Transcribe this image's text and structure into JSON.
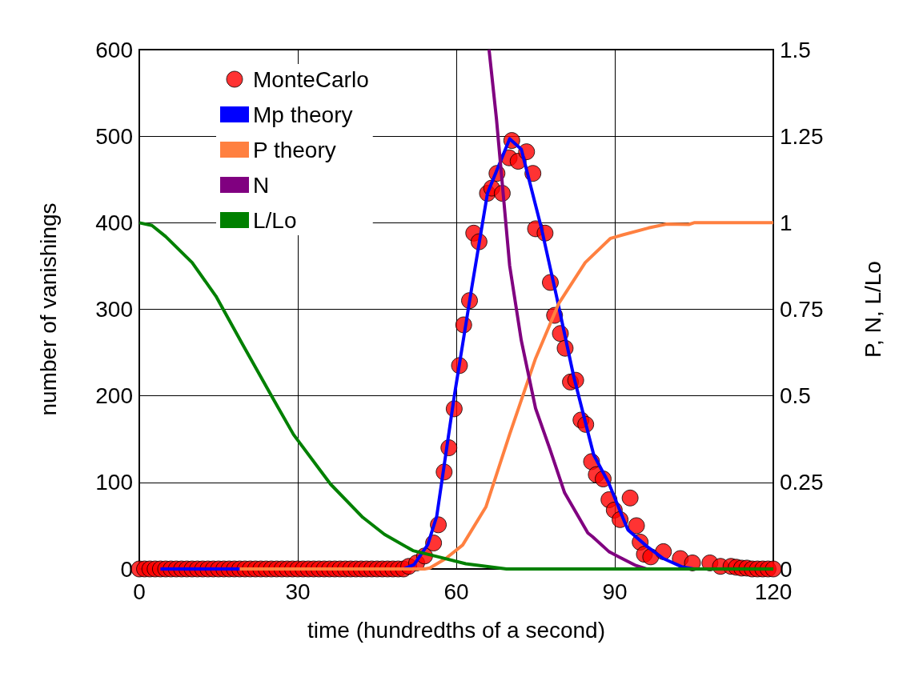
{
  "chart_data": {
    "type": "line",
    "xlabel": "time (hundredths of a second)",
    "ylabel": "number of vanishings",
    "y2label": "P, N, L/Lo",
    "xlim": [
      0,
      120
    ],
    "xticks": [
      0,
      30,
      60,
      90,
      120
    ],
    "ylim": [
      0,
      600
    ],
    "yticks": [
      0,
      100,
      200,
      300,
      400,
      500,
      600
    ],
    "y2lim": [
      0,
      1.5
    ],
    "y2ticks": [
      0,
      0.25,
      0.5,
      0.75,
      1,
      1.25,
      1.5
    ],
    "grid": true,
    "legend": "top left",
    "series": [
      {
        "name": "MonteCarlo",
        "type": "scatter",
        "marker": "circle",
        "color": "#ff0000",
        "x": [
          0,
          1,
          2,
          3,
          4,
          5,
          6,
          7,
          8,
          9,
          10,
          11,
          12,
          13,
          14,
          15,
          16,
          17,
          18,
          19,
          20,
          21,
          22,
          23,
          24,
          25,
          26,
          27,
          28,
          29,
          30,
          31,
          32,
          33,
          34,
          35,
          36,
          37,
          38,
          39,
          40,
          41,
          42,
          43,
          44,
          45,
          46,
          47,
          48,
          49,
          50,
          51,
          52.5,
          54,
          55.7,
          56.6,
          57.7,
          58.6,
          59.6,
          60.6,
          61.4,
          62.5,
          63.3,
          64.3,
          65.9,
          66.7,
          67.7,
          68.7,
          70,
          70.5,
          71.7,
          73.3,
          74.5,
          75,
          76.8,
          77.8,
          78.6,
          79.7,
          80.6,
          81.6,
          82.6,
          83.6,
          84.5,
          85.6,
          86.5,
          87.8,
          88.9,
          89.9,
          91,
          92.9,
          94.1,
          94.8,
          95.6,
          96.8,
          99.2,
          102.4,
          104.7,
          108,
          110,
          112,
          113,
          114,
          115,
          116,
          117,
          118,
          119,
          120
        ],
        "values": [
          0,
          0,
          0,
          0,
          0,
          0,
          0,
          0,
          0,
          0,
          0,
          0,
          0,
          0,
          0,
          0,
          0,
          0,
          0,
          0,
          0,
          0,
          0,
          0,
          0,
          0,
          0,
          0,
          0,
          0,
          0,
          0,
          0,
          0,
          0,
          0,
          0,
          0,
          0,
          0,
          0,
          0,
          0,
          0,
          0,
          0,
          0,
          0,
          0,
          0,
          0,
          3,
          7,
          15,
          30,
          51,
          112,
          140,
          185,
          235,
          282,
          310,
          388,
          378,
          434,
          440,
          457,
          434,
          475,
          495,
          471,
          482,
          457,
          393,
          388,
          331,
          293,
          272,
          255,
          216,
          218,
          172,
          167,
          124,
          109,
          104,
          80,
          68,
          57,
          82,
          50,
          31,
          17,
          14,
          20,
          12,
          7,
          7,
          3,
          3,
          2,
          1,
          1,
          0,
          0,
          0,
          0,
          0
        ]
      },
      {
        "name": "Mp theory",
        "marker": "none",
        "color": "#0000ff",
        "x": [
          4,
          50,
          52,
          54.6,
          56.3,
          59.6,
          62.9,
          65.9,
          70.1,
          72.3,
          76.1,
          78.9,
          82.2,
          86,
          88.8,
          91.8,
          92.5,
          96.1,
          99.2,
          102.9,
          105
        ],
        "values": [
          0,
          0,
          5,
          28,
          61,
          199,
          324,
          434,
          497,
          485,
          394,
          317,
          223,
          132,
          100,
          55,
          45,
          26,
          12,
          2,
          0
        ]
      },
      {
        "name": "P theory",
        "marker": "none",
        "axis": "y2",
        "color": "#ff8040",
        "x": [
          19,
          54,
          55,
          58,
          61.2,
          65.6,
          70.1,
          75,
          79.4,
          84.4,
          89.2,
          91.5,
          96.4,
          99.8,
          104,
          105,
          120
        ],
        "values": [
          0,
          0,
          0.003,
          0.03,
          0.069,
          0.179,
          0.389,
          0.608,
          0.767,
          0.885,
          0.955,
          0.965,
          0.985,
          0.996,
          0.995,
          1,
          1
        ]
      },
      {
        "name": "N",
        "marker": "none",
        "axis": "y2",
        "color": "#800080",
        "x": [
          66.2,
          67.6,
          70.1,
          72.3,
          75,
          77.7,
          80.5,
          84.9,
          85.8,
          88.9,
          90.5,
          94,
          96
        ],
        "values": [
          1.5,
          1.3,
          0.876,
          0.66,
          0.464,
          0.347,
          0.22,
          0.104,
          0.093,
          0.05,
          0.037,
          0.01,
          0
        ]
      },
      {
        "name": "L/Lo",
        "marker": "none",
        "axis": "y2",
        "color": "#008000",
        "x": [
          0,
          2.4,
          5,
          10,
          14.5,
          19.5,
          25.2,
          29.2,
          36.2,
          42.3,
          46.4,
          51.8,
          56.3,
          61.8,
          69.5,
          120
        ],
        "values": [
          1,
          0.992,
          0.96,
          0.885,
          0.788,
          0.65,
          0.495,
          0.388,
          0.245,
          0.149,
          0.1,
          0.053,
          0.036,
          0.015,
          0,
          0
        ]
      }
    ]
  }
}
